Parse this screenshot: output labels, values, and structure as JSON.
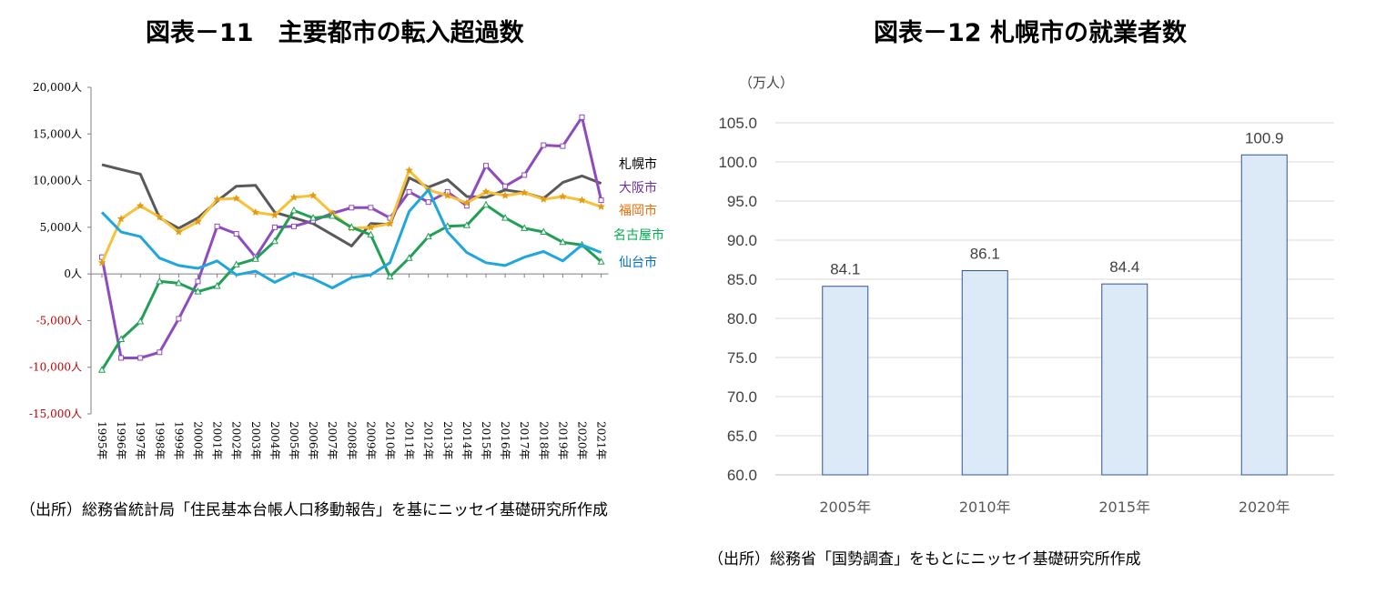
{
  "left_chart": {
    "title": "図表－11　主要都市の転入超過数",
    "source": "（出所）総務省統計局「住民基本台帳人口移動報告」を基にニッセイ基礎研究所作成"
  },
  "right_chart": {
    "title": "図表－12 札幌市の就業者数",
    "source": "（出所）総務省「国勢調査」をもとにニッセイ基礎研究所作成"
  },
  "chart_data": [
    {
      "type": "line",
      "title": "図表－11　主要都市の転入超過数",
      "ylim": [
        -15000,
        20000
      ],
      "yticks": [
        20000,
        15000,
        10000,
        5000,
        0,
        -5000,
        -10000,
        -15000
      ],
      "ytick_labels": [
        "20,000人",
        "15,000人",
        "10,000人",
        "5,000人",
        "0人",
        "-5,000人",
        "-10,000人",
        "-15,000人"
      ],
      "negative_tick_color": "#c00000",
      "categories": [
        "1995年",
        "1996年",
        "1997年",
        "1998年",
        "1999年",
        "2000年",
        "2001年",
        "2002年",
        "2003年",
        "2004年",
        "2005年",
        "2006年",
        "2007年",
        "2008年",
        "2009年",
        "2010年",
        "2011年",
        "2012年",
        "2013年",
        "2014年",
        "2015年",
        "2016年",
        "2017年",
        "2018年",
        "2019年",
        "2020年",
        "2021年"
      ],
      "legend_placement": "right, inline labels",
      "series": [
        {
          "name": "札幌市",
          "color": "#595959",
          "label_color": "#000000",
          "marker": "none",
          "values": [
            11700,
            11200,
            10700,
            6000,
            4900,
            6000,
            7800,
            9400,
            9500,
            6600,
            6000,
            5400,
            4200,
            3000,
            5400,
            5300,
            10300,
            9300,
            10100,
            8300,
            8200,
            9000,
            8700,
            8100,
            9800,
            10500,
            9700
          ]
        },
        {
          "name": "大阪市",
          "color": "#8e4bbf",
          "label_color": "#7030a0",
          "marker": "square",
          "values": [
            1800,
            -9000,
            -9000,
            -8400,
            -4800,
            -800,
            5100,
            4300,
            1800,
            5000,
            5100,
            5700,
            6500,
            7100,
            7100,
            6000,
            8800,
            7700,
            8800,
            7300,
            11600,
            9400,
            10600,
            13800,
            13700,
            16800,
            7900
          ]
        },
        {
          "name": "福岡市",
          "color": "#f7c23a",
          "label_color": "#e46c0a",
          "marker": "star",
          "values": [
            1200,
            5900,
            7300,
            6100,
            4500,
            5600,
            8000,
            8100,
            6600,
            6300,
            8200,
            8400,
            6500,
            4900,
            5000,
            5400,
            11100,
            9000,
            8400,
            7600,
            8800,
            8400,
            8700,
            8000,
            8300,
            7900,
            7200
          ]
        },
        {
          "name": "名古屋市",
          "color": "#21a055",
          "label_color": "#00b050",
          "marker": "triangle",
          "values": [
            -10300,
            -7000,
            -5100,
            -800,
            -1000,
            -1900,
            -1300,
            1000,
            1600,
            3500,
            6800,
            6000,
            6200,
            5000,
            4200,
            -300,
            1700,
            4000,
            5100,
            5200,
            7400,
            6000,
            4900,
            4500,
            3400,
            3100,
            1300
          ]
        },
        {
          "name": "仙台市",
          "color": "#1fa7dc",
          "label_color": "#0070c0",
          "marker": "none",
          "values": [
            6600,
            4500,
            4000,
            1700,
            900,
            600,
            1400,
            -100,
            300,
            -900,
            100,
            -500,
            -1500,
            -400,
            -100,
            1200,
            6700,
            9000,
            4500,
            2300,
            1200,
            900,
            1800,
            2400,
            1400,
            3100,
            2300
          ]
        }
      ]
    },
    {
      "type": "bar",
      "title": "図表－12 札幌市の就業者数",
      "unit_label": "（万人）",
      "categories": [
        "2005年",
        "2010年",
        "2015年",
        "2020年"
      ],
      "values": [
        84.1,
        86.1,
        84.4,
        100.9
      ],
      "value_labels": [
        "84.1",
        "86.1",
        "84.4",
        "100.9"
      ],
      "ylim": [
        60,
        105
      ],
      "yticks": [
        60,
        65,
        70,
        75,
        80,
        85,
        90,
        95,
        100,
        105
      ],
      "ytick_labels": [
        "60.0",
        "65.0",
        "70.0",
        "75.0",
        "80.0",
        "85.0",
        "90.0",
        "95.0",
        "100.0",
        "105.0"
      ],
      "grid": true,
      "bar_fill": "#dce9f6",
      "bar_stroke": "#2f5597"
    }
  ]
}
